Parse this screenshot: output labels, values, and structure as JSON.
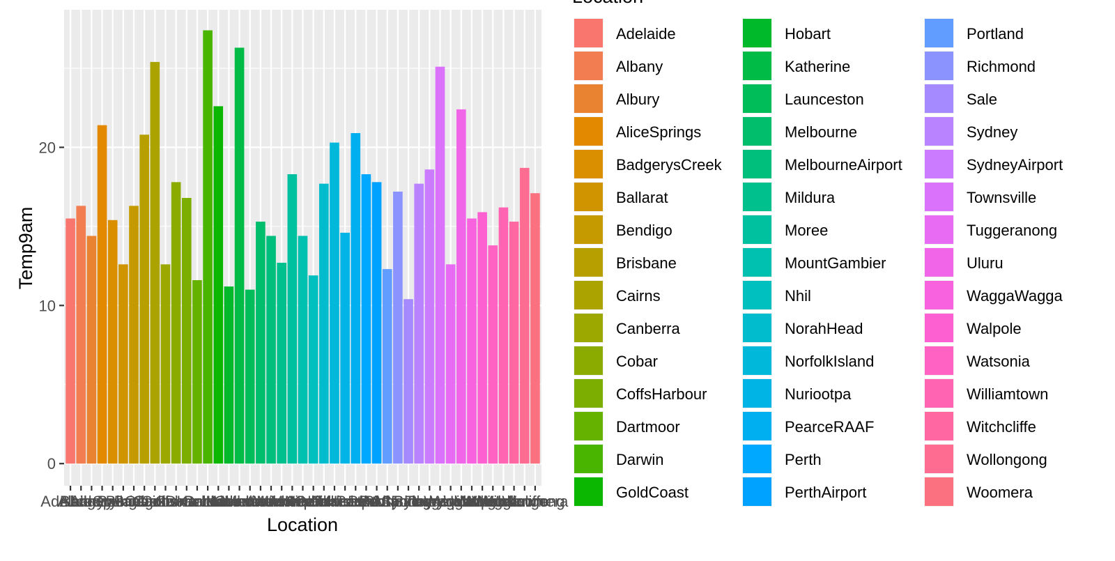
{
  "chart_data": {
    "type": "bar",
    "xlabel": "Location",
    "ylabel": "Temp9am",
    "legend_title": "Location",
    "legend_position": "right",
    "ylim": [
      -1.4,
      28.7
    ],
    "yticks": [
      0,
      10,
      20
    ],
    "grid": true,
    "categories": [
      "Adelaide",
      "Albany",
      "Albury",
      "AliceSprings",
      "BadgerysCreek",
      "Ballarat",
      "Bendigo",
      "Brisbane",
      "Cairns",
      "Canberra",
      "Cobar",
      "CoffsHarbour",
      "Dartmoor",
      "Darwin",
      "GoldCoast",
      "Hobart",
      "Katherine",
      "Launceston",
      "Melbourne",
      "MelbourneAirport",
      "Mildura",
      "Moree",
      "MountGambier",
      "Nhil",
      "NorahHead",
      "NorfolkIsland",
      "Nuriootpa",
      "PearceRAAF",
      "Perth",
      "PerthAirport",
      "Portland",
      "Richmond",
      "Sale",
      "Sydney",
      "SydneyAirport",
      "Townsville",
      "Tuggeranong",
      "Uluru",
      "WaggaWagga",
      "Walpole",
      "Watsonia",
      "Williamtown",
      "Witchcliffe",
      "Wollongong",
      "Woomera"
    ],
    "values": [
      15.5,
      16.3,
      14.4,
      21.4,
      15.4,
      12.6,
      16.3,
      20.8,
      25.4,
      12.6,
      17.8,
      16.8,
      11.6,
      27.4,
      22.6,
      11.2,
      26.3,
      11.0,
      15.3,
      14.4,
      12.7,
      18.3,
      14.4,
      11.9,
      17.7,
      20.3,
      14.6,
      20.9,
      18.3,
      17.8,
      12.3,
      17.2,
      10.4,
      17.7,
      18.6,
      25.1,
      12.6,
      22.4,
      15.5,
      15.9,
      13.8,
      16.2,
      15.3,
      18.7,
      17.1
    ],
    "colors": [
      "#F8766D",
      "#F17D51",
      "#EA8331",
      "#E38900",
      "#D98F00",
      "#CF9400",
      "#C49A00",
      "#B79F00",
      "#AAA300",
      "#9CA700",
      "#8CAB00",
      "#7BAE00",
      "#66B200",
      "#4AB500",
      "#0CB702",
      "#00B92A",
      "#00BB45",
      "#00BC59",
      "#00BE6C",
      "#00BF7D",
      "#00C08E",
      "#00C19F",
      "#00C0AF",
      "#00BFBF",
      "#00BCCD",
      "#00B9DA",
      "#00B4E6",
      "#00AFF0",
      "#00A9FF",
      "#00A2FF",
      "#619CFF",
      "#8B93FF",
      "#A58AFF",
      "#B983FF",
      "#CB7BFF",
      "#DB72FB",
      "#E76BF3",
      "#F166E9",
      "#F962DE",
      "#FD61D1",
      "#FF62C3",
      "#FF64B3",
      "#FF67A3",
      "#FF6C91",
      "#FC717F"
    ]
  }
}
